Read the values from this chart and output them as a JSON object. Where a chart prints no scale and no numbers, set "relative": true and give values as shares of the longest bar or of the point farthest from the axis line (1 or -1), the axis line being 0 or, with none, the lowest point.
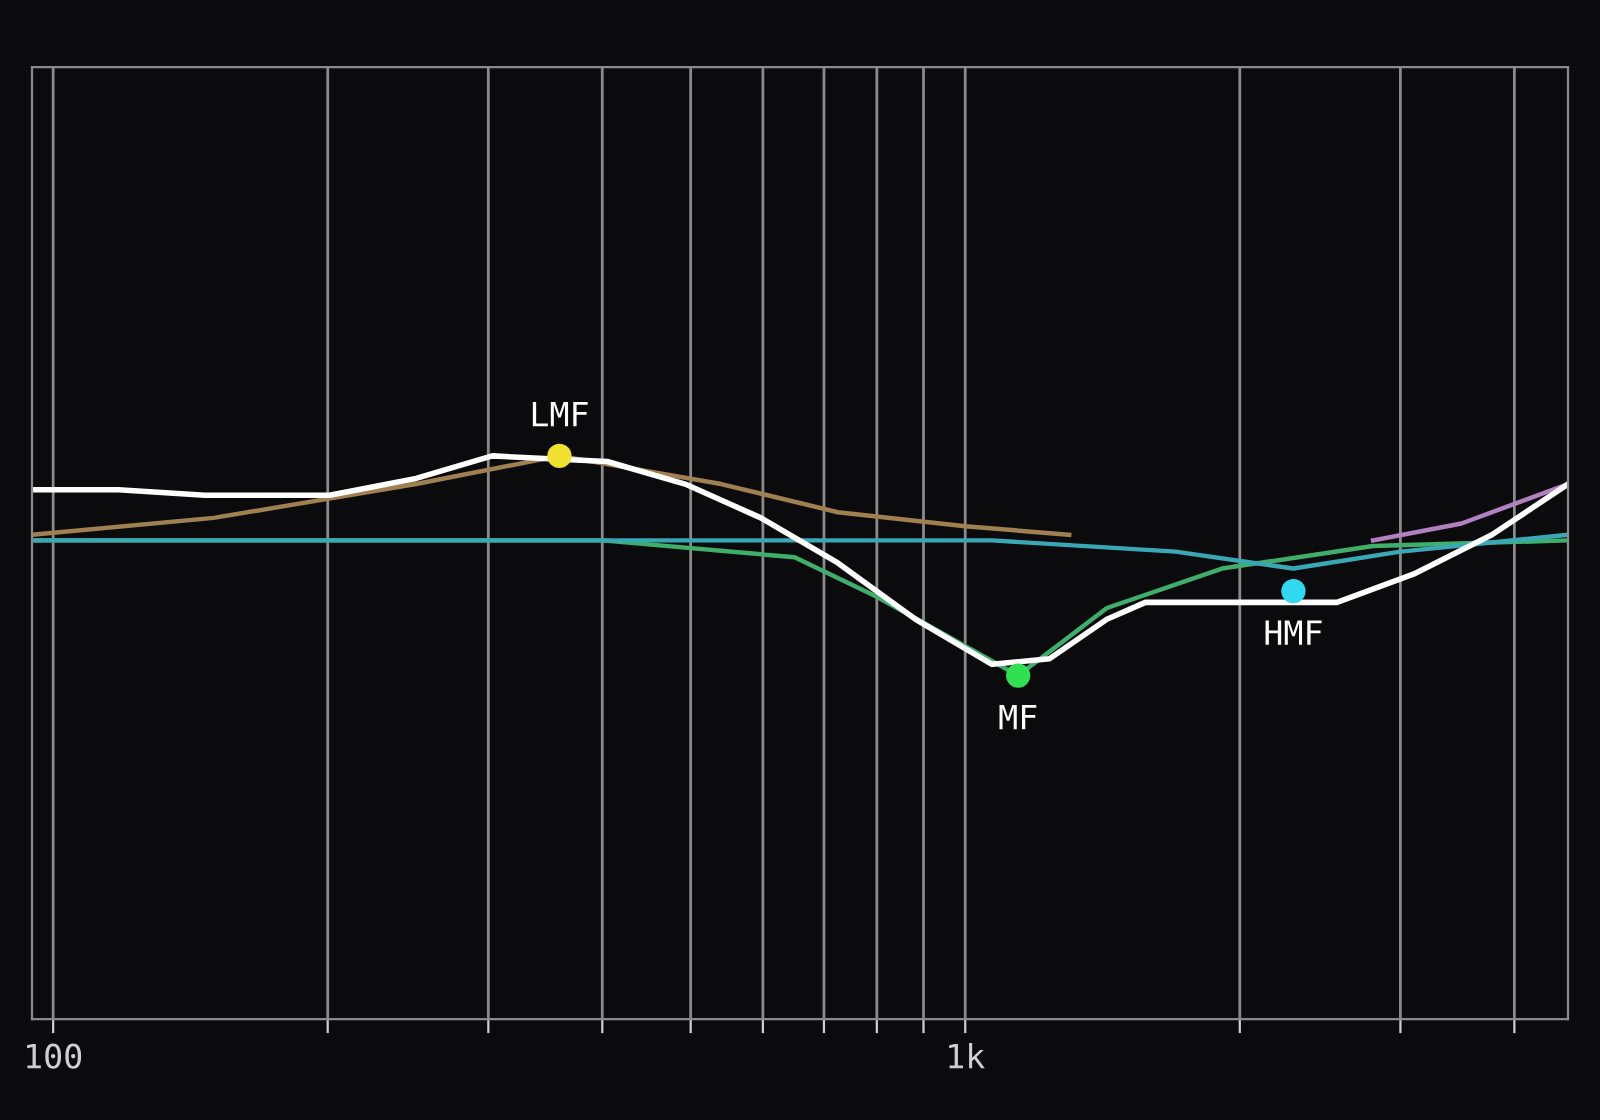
{
  "chart_data": {
    "type": "line",
    "relative": true,
    "log": "x",
    "grid": "x",
    "xlim": [
      94.8,
      4580
    ],
    "xticks": [
      {
        "value": 100,
        "label": "100"
      },
      {
        "value": 200,
        "label": null
      },
      {
        "value": 300,
        "label": null
      },
      {
        "value": 400,
        "label": null
      },
      {
        "value": 500,
        "label": null
      },
      {
        "value": 600,
        "label": null
      },
      {
        "value": 700,
        "label": null
      },
      {
        "value": 800,
        "label": null
      },
      {
        "value": 900,
        "label": null
      },
      {
        "value": 1000,
        "label": "1k"
      },
      {
        "value": 2000,
        "label": null
      },
      {
        "value": 3000,
        "label": null
      },
      {
        "value": 4000,
        "label": null
      }
    ],
    "series": [
      {
        "color": "#a08050",
        "x": [
          94.8,
          150,
          250,
          359,
          540,
          725,
          1000,
          1300
        ],
        "values": [
          0.86,
          0.89,
          0.95,
          1.0,
          0.95,
          0.9,
          0.875,
          0.86
        ]
      },
      {
        "color": "#3fae6a",
        "x": [
          94.8,
          400,
          650,
          800,
          1143,
          1430,
          1912,
          2800,
          4580
        ],
        "values": [
          0.85,
          0.85,
          0.82,
          0.75,
          0.61,
          0.73,
          0.8,
          0.84,
          0.85
        ]
      },
      {
        "color": "#3aa7b5",
        "x": [
          94.8,
          1070,
          1700,
          2290,
          3000,
          4580
        ],
        "values": [
          0.85,
          0.85,
          0.83,
          0.8,
          0.83,
          0.86
        ]
      },
      {
        "color": "#b080c0",
        "x": [
          2800,
          3500,
          4580
        ],
        "values": [
          0.85,
          0.88,
          0.95
        ]
      },
      {
        "color": "#ffffff",
        "x": [
          94.8,
          117.9,
          146.7,
          200.9,
          250,
          303,
          405,
          493,
          597,
          725,
          882,
          1070,
          1237,
          1430,
          1576,
          1912,
          2319,
          2556,
          3100,
          3780,
          4580
        ],
        "values": [
          0.94,
          0.94,
          0.93,
          0.93,
          0.96,
          1.0,
          0.99,
          0.95,
          0.89,
          0.81,
          0.71,
          0.63,
          0.64,
          0.71,
          0.74,
          0.74,
          0.74,
          0.74,
          0.79,
          0.86,
          0.95
        ]
      },
      {
        "type": "scatter",
        "name": "LMF",
        "color": "#f0e030",
        "x": [
          359
        ],
        "values": [
          1.0
        ]
      },
      {
        "type": "scatter",
        "name": "MF",
        "color": "#30e050",
        "x": [
          1143
        ],
        "values": [
          0.61
        ]
      },
      {
        "type": "scatter",
        "name": "HMF",
        "color": "#30d8f0",
        "x": [
          2290
        ],
        "values": [
          0.76
        ]
      }
    ]
  }
}
